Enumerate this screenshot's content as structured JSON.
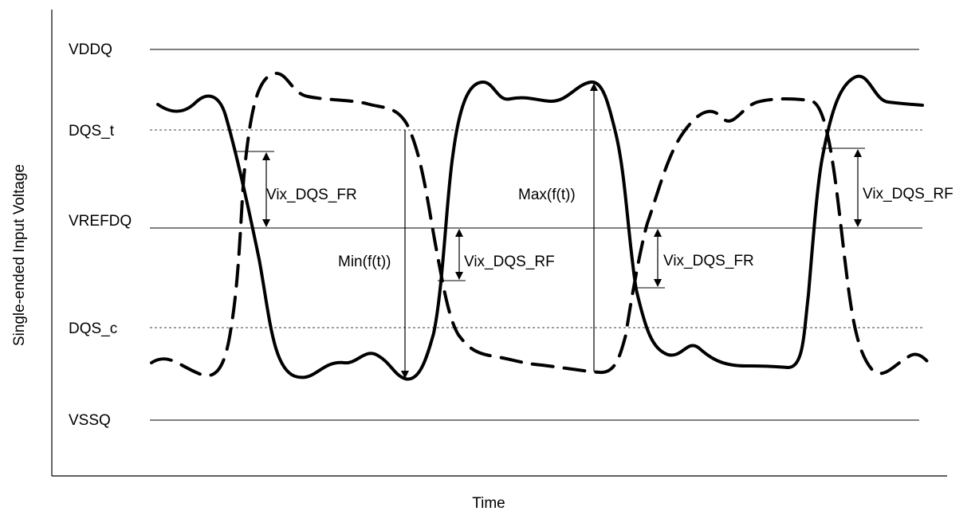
{
  "diagram": {
    "axes": {
      "x_label": "Time",
      "y_label": "Single-ended Input Voltage"
    },
    "levels": {
      "vddq": "VDDQ",
      "dqs_t": "DQS_t",
      "vrefdq": "VREFDQ",
      "dqs_c": "DQS_c",
      "vssq": "VSSQ"
    },
    "annotations": {
      "vix_fr_1": "Vix_DQS_FR",
      "min_ft": "Min(f(t))",
      "vix_rf_1": "Vix_DQS_RF",
      "max_ft": "Max(f(t))",
      "vix_fr_2": "Vix_DQS_FR",
      "vix_rf_2": "Vix_DQS_RF"
    },
    "signals": {
      "solid": "DQS_t",
      "dashed": "DQS_c"
    },
    "colors": {
      "ink": "#000000",
      "background": "#ffffff"
    }
  }
}
